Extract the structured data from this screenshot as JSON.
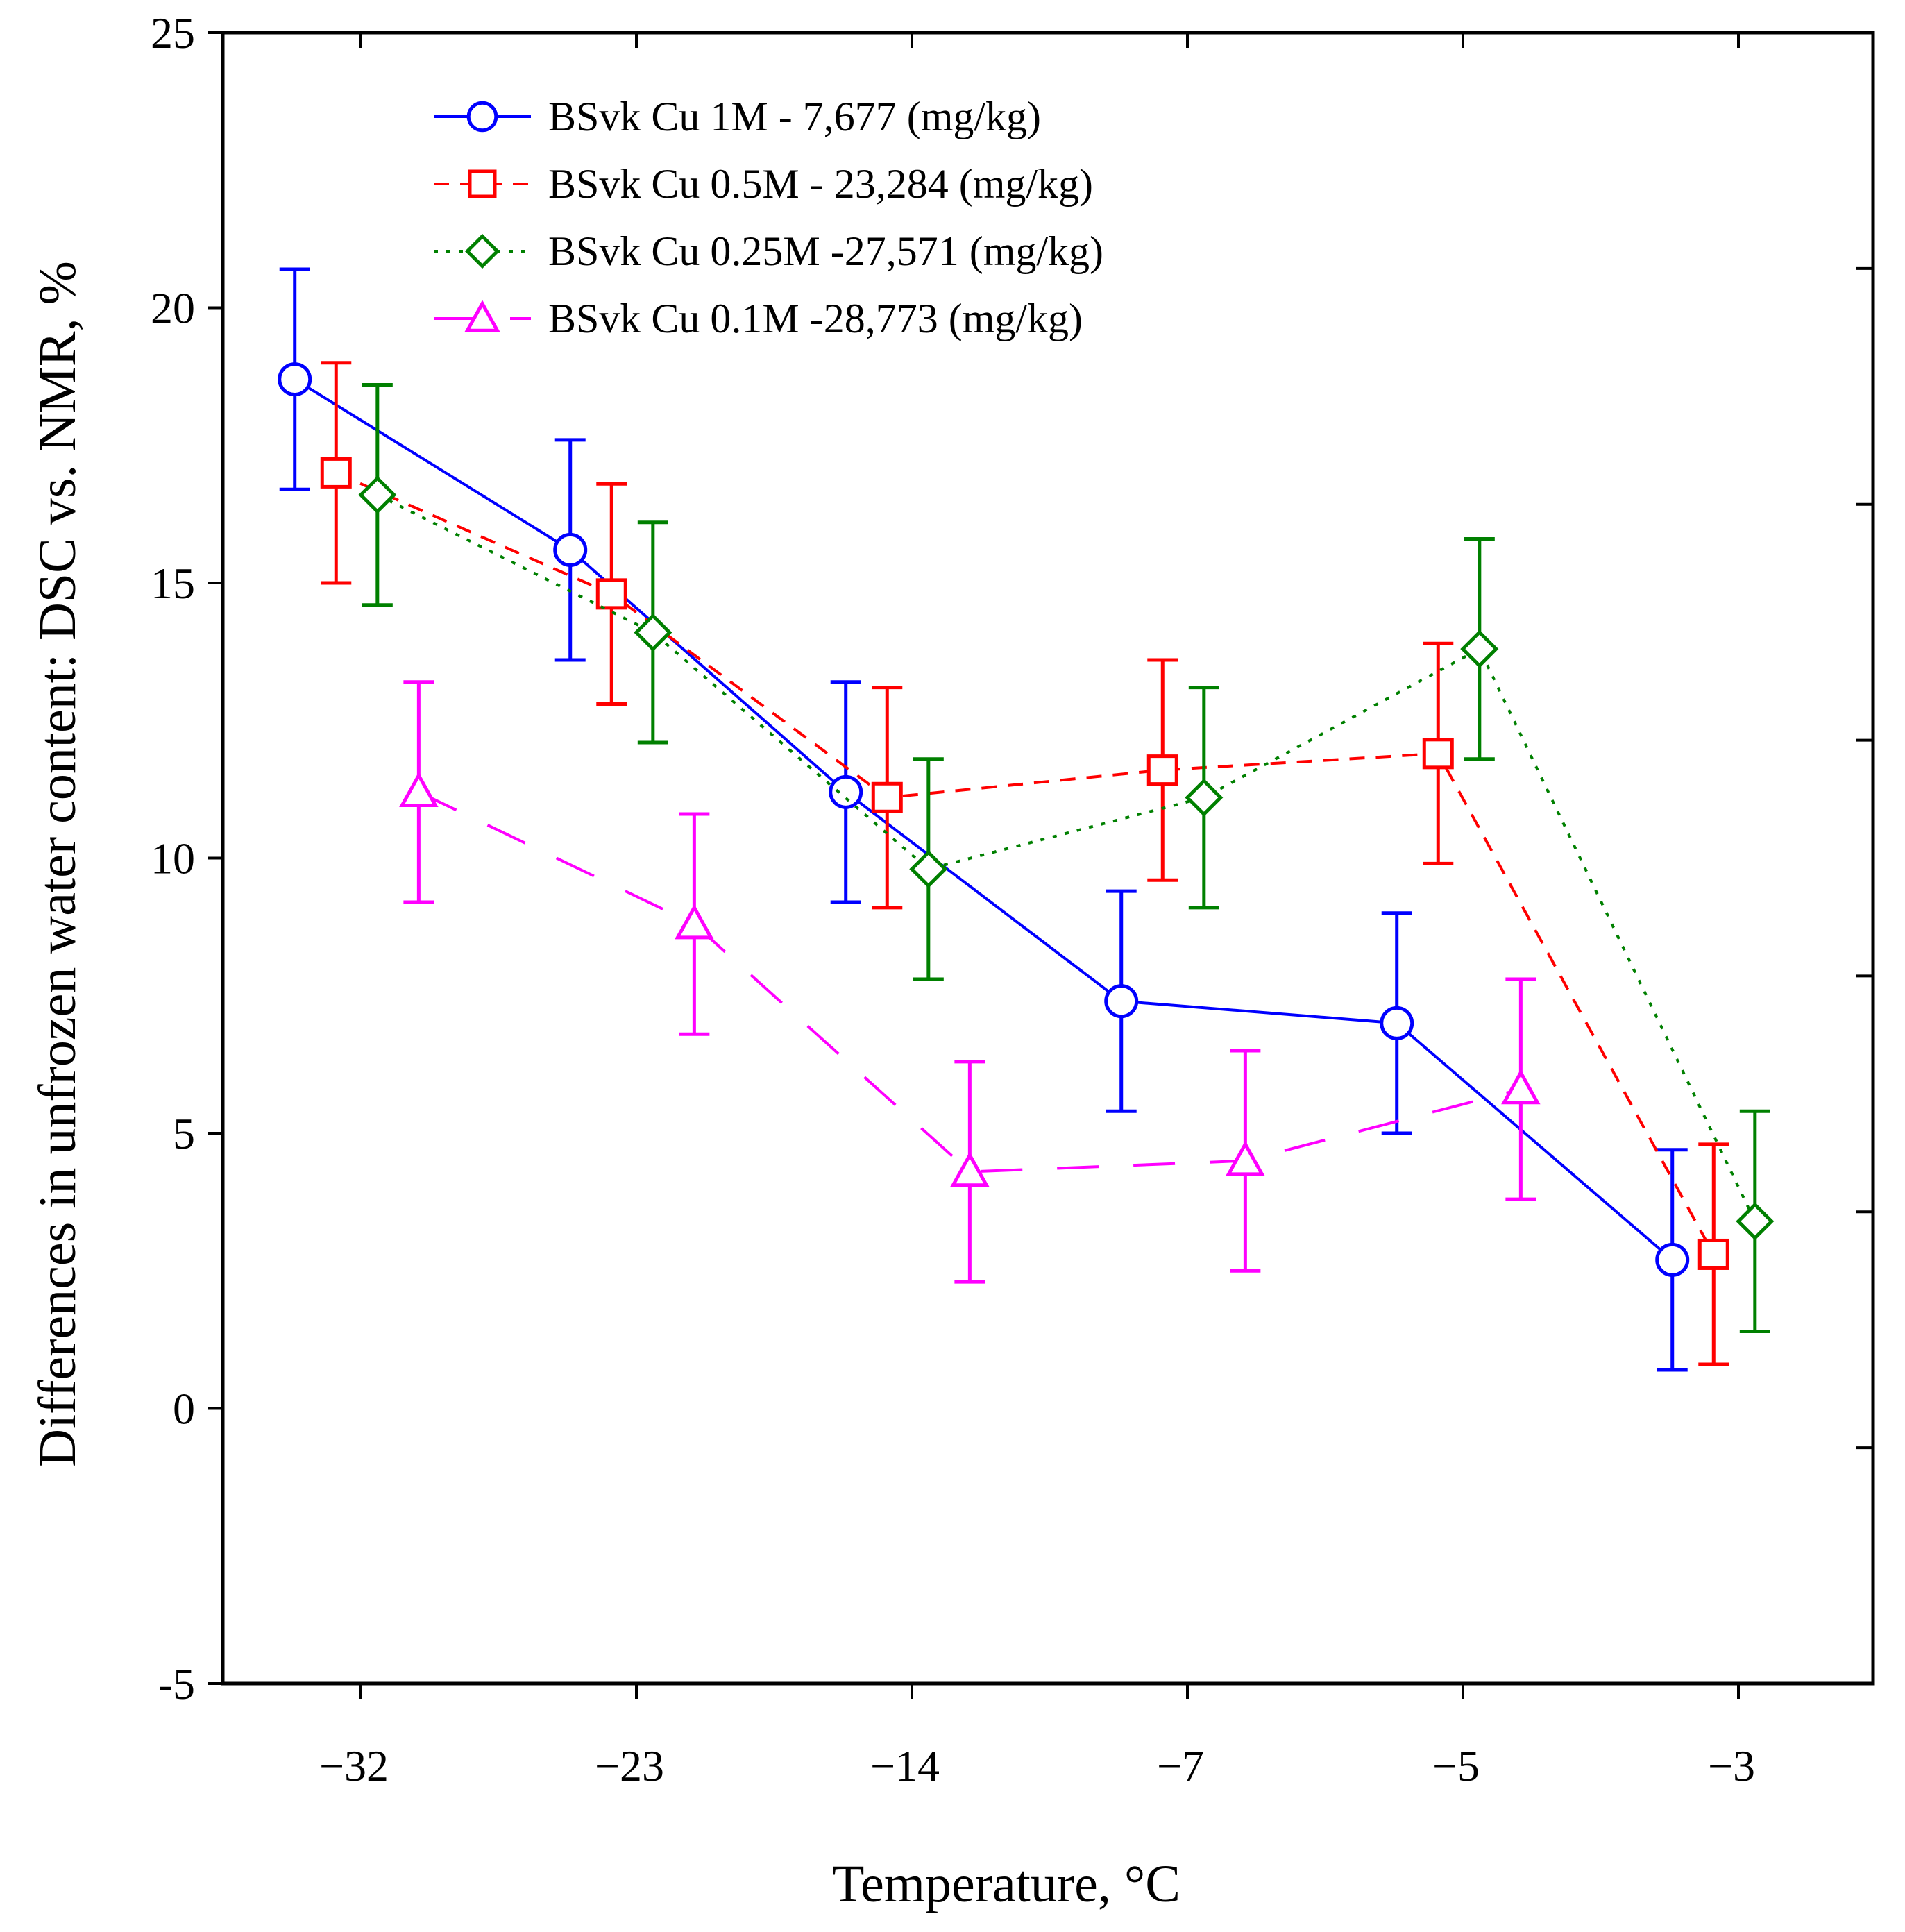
{
  "chart_data": {
    "type": "line",
    "title": "",
    "xlabel": "Temperature, °C",
    "ylabel": "Differences in unfrozen water content: DSC vs. NMR, %",
    "categories": [
      "−32",
      "−23",
      "−14",
      "−7",
      "−5",
      "−3"
    ],
    "ylim": [
      -5,
      25
    ],
    "yticks": [
      "25",
      "20",
      "15",
      "10",
      "5",
      "0",
      "-5"
    ],
    "error_bar": 2,
    "legend_position": "top-left",
    "series": [
      {
        "name": "BSvk Cu 1M - 7,677 (mg/kg)",
        "color": "#0000ff",
        "marker": "circle",
        "line": "solid",
        "offset": -0.24,
        "values": [
          18.7,
          15.6,
          11.2,
          7.4,
          7.0,
          2.7
        ]
      },
      {
        "name": "BSvk Cu 0.5M - 23,284  (mg/kg)",
        "color": "#ff0000",
        "marker": "square",
        "line": "dashed",
        "offset": -0.09,
        "values": [
          17.0,
          14.8,
          11.1,
          11.6,
          11.9,
          2.8
        ]
      },
      {
        "name": "BSvk Cu 0.25M -27,571 (mg/kg)",
        "color": "#008000",
        "marker": "diamond",
        "line": "dotted",
        "offset": 0.06,
        "values": [
          16.6,
          14.1,
          9.8,
          11.1,
          13.8,
          3.4
        ]
      },
      {
        "name": "BSvk Cu 0.1M -28,773 (mg/kg)",
        "color": "#ff00ff",
        "marker": "triangle",
        "line": "longdash",
        "offset": 0.21,
        "values": [
          11.2,
          8.8,
          4.3,
          4.5,
          5.8,
          null
        ]
      }
    ]
  }
}
